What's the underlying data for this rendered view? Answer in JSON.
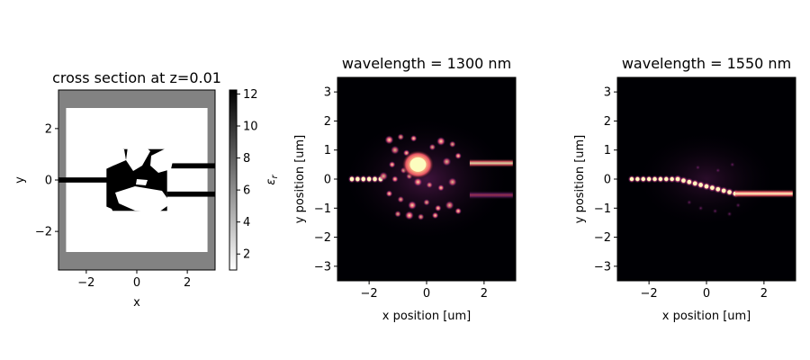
{
  "chart_data": [
    {
      "type": "heatmap",
      "title": "cross section at z=0.01",
      "xlabel": "x",
      "ylabel": "y",
      "xlim": [
        -3.1,
        3.1
      ],
      "ylim": [
        -3.5,
        3.5
      ],
      "xticks": [
        -2,
        0,
        2
      ],
      "yticks": [
        -2,
        0,
        2
      ],
      "colorbar": {
        "label": "ε_r",
        "range": [
          1,
          12.25
        ],
        "ticks": [
          2,
          4,
          6,
          8,
          10,
          12
        ],
        "colors": [
          "#ffffff",
          "#000000"
        ]
      },
      "materials": {
        "background_eps": 6.5,
        "design_region_eps": 1.0,
        "waveguide_eps": 12.25
      },
      "design_region": {
        "x": [
          -2.8,
          2.8
        ],
        "y": [
          -2.8,
          2.8
        ]
      },
      "waveguides": [
        {
          "x": [
            -3.1,
            0
          ],
          "y": [
            -0.1,
            0.1
          ]
        },
        {
          "x": [
            1.2,
            3.1
          ],
          "y": [
            0.45,
            0.65
          ]
        },
        {
          "x": [
            1.2,
            3.1
          ],
          "y": [
            -0.65,
            -0.45
          ]
        }
      ],
      "device_block": {
        "x": [
          -1.2,
          1.2
        ],
        "y": [
          -1.2,
          1.2
        ]
      }
    },
    {
      "type": "heatmap",
      "title": "wavelength = 1300 nm",
      "xlabel": "x position [um]",
      "ylabel": "y position [um]",
      "xlim": [
        -3.1,
        3.1
      ],
      "ylim": [
        -3.5,
        3.5
      ],
      "xticks": [
        -2,
        0,
        2
      ],
      "yticks": [
        -3,
        -2,
        -1,
        0,
        1,
        2,
        3
      ],
      "colormap": "magma",
      "input_port": {
        "x": [
          -2.6,
          -1.6
        ],
        "y": 0
      },
      "output_ports": [
        {
          "x": [
            1.5,
            3.0
          ],
          "y": 0.55,
          "intensity": 0.75
        },
        {
          "x": [
            1.5,
            3.0
          ],
          "y": -0.55,
          "intensity": 0.45
        }
      ],
      "hotspot": {
        "x": -0.3,
        "y": 0.5,
        "intensity": 1.0
      }
    },
    {
      "type": "heatmap",
      "title": "wavelength = 1550 nm",
      "xlabel": "x position [um]",
      "ylabel": "y position [um]",
      "xlim": [
        -3.1,
        3.1
      ],
      "ylim": [
        -3.5,
        3.5
      ],
      "xticks": [
        -2,
        0,
        2
      ],
      "yticks": [
        -3,
        -2,
        -1,
        0,
        1,
        2,
        3
      ],
      "colormap": "magma",
      "input_port": {
        "x": [
          -2.6,
          -1.0
        ],
        "y": 0
      },
      "output_ports": [
        {
          "x": [
            1.0,
            3.0
          ],
          "y": -0.5,
          "intensity": 1.0
        }
      ]
    }
  ]
}
